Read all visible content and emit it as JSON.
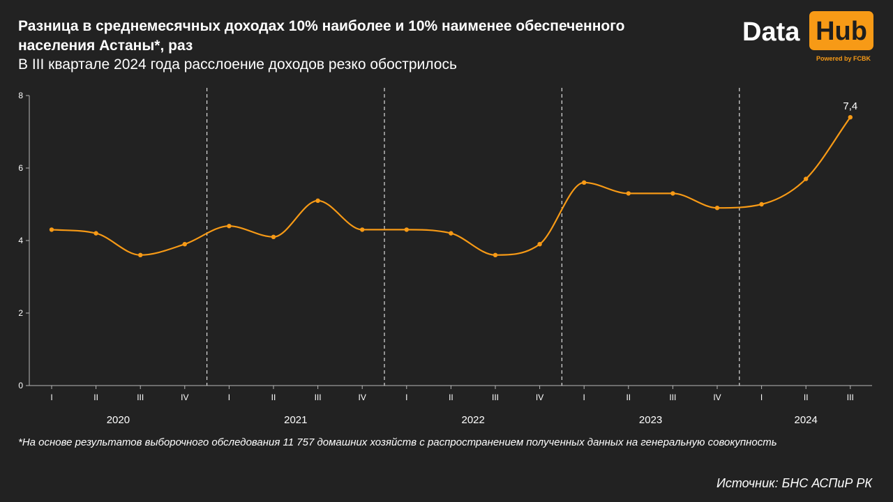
{
  "header": {
    "title": "Разница в среднемесячных доходах 10% наиболее и 10% наименее обеспеченного населения Астаны*, раз",
    "subtitle": "В III квартале 2024 года расслоение доходов резко обострилось"
  },
  "logo": {
    "data": "Data",
    "hub": "Hub",
    "powered": "Powered by FCBK"
  },
  "footnote": "*На основе результатов выборочного обследования 11 757 домашних хозяйств с распространением полученных данных на генеральную совокупность",
  "source": "Источник: БНС АСПиР РК",
  "colors": {
    "background": "#222222",
    "line": "#f79a16",
    "axis": "#b8b8b8",
    "text": "#ffffff"
  },
  "chart_data": {
    "type": "line",
    "title": "Разница в среднемесячных доходах 10% наиболее и 10% наименее обеспеченного населения Астаны*, раз",
    "ylim": [
      0,
      8
    ],
    "yticks": [
      "0",
      "2",
      "4",
      "6",
      "8"
    ],
    "grid": false,
    "categories": [
      "I",
      "II",
      "III",
      "IV",
      "I",
      "II",
      "III",
      "IV",
      "I",
      "II",
      "III",
      "IV",
      "I",
      "II",
      "III",
      "IV",
      "I",
      "II",
      "III"
    ],
    "groups": [
      {
        "label": "2020",
        "count": 4
      },
      {
        "label": "2021",
        "count": 4
      },
      {
        "label": "2022",
        "count": 4
      },
      {
        "label": "2023",
        "count": 4
      },
      {
        "label": "2024",
        "count": 3
      }
    ],
    "series": [
      {
        "values": [
          4.3,
          4.2,
          3.6,
          3.9,
          4.4,
          4.1,
          5.1,
          4.3,
          4.3,
          4.2,
          3.6,
          3.9,
          5.6,
          5.3,
          5.3,
          4.9,
          5.0,
          5.7,
          7.4
        ]
      }
    ],
    "annotations": [
      {
        "index": 18,
        "text": "7,4"
      }
    ]
  }
}
